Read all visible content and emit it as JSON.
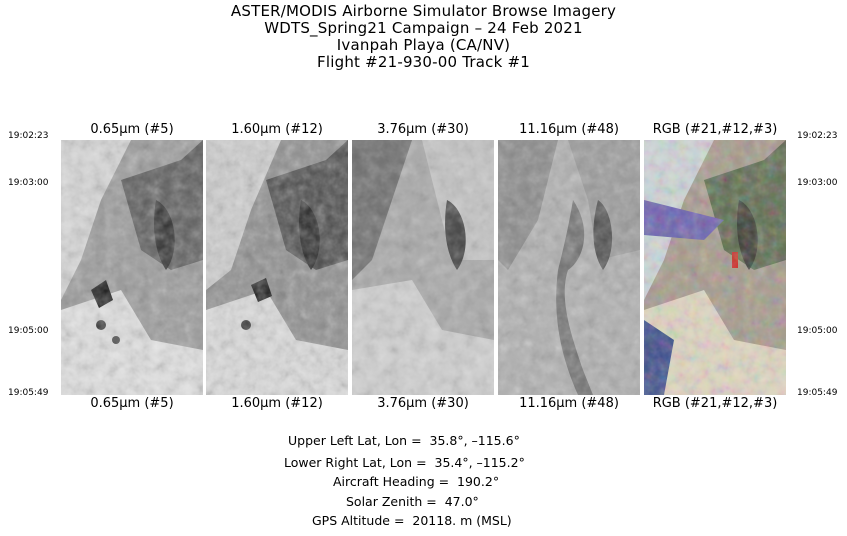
{
  "header": {
    "line1": "ASTER/MODIS Airborne Simulator Browse Imagery",
    "line2": "WDTS_Spring21 Campaign – 24 Feb 2021",
    "line3": "Ivanpah Playa (CA/NV)",
    "line4": "Flight #21-930-00 Track #1"
  },
  "times": {
    "t1": "19:02:23",
    "t2": "19:03:00",
    "t3": "19:05:00",
    "t4": "19:05:49"
  },
  "bands": [
    {
      "label": "0.65μm (#5)"
    },
    {
      "label": "1.60μm (#12)"
    },
    {
      "label": "3.76μm (#30)"
    },
    {
      "label": "11.16μm (#48)"
    },
    {
      "label": "RGB (#21,#12,#3)"
    }
  ],
  "metadata": {
    "upper_left": {
      "label": "Upper Left Lat, Lon =",
      "value": "35.8°, –115.6°"
    },
    "lower_right": {
      "label": "Lower Right Lat, Lon =",
      "value": "35.4°, –115.2°"
    },
    "heading": {
      "label": "Aircraft Heading =",
      "value": "190.2°"
    },
    "zenith": {
      "label": "Solar Zenith =",
      "value": "47.0°"
    },
    "altitude": {
      "label": "GPS Altitude =",
      "value": "20118. m (MSL)"
    }
  }
}
